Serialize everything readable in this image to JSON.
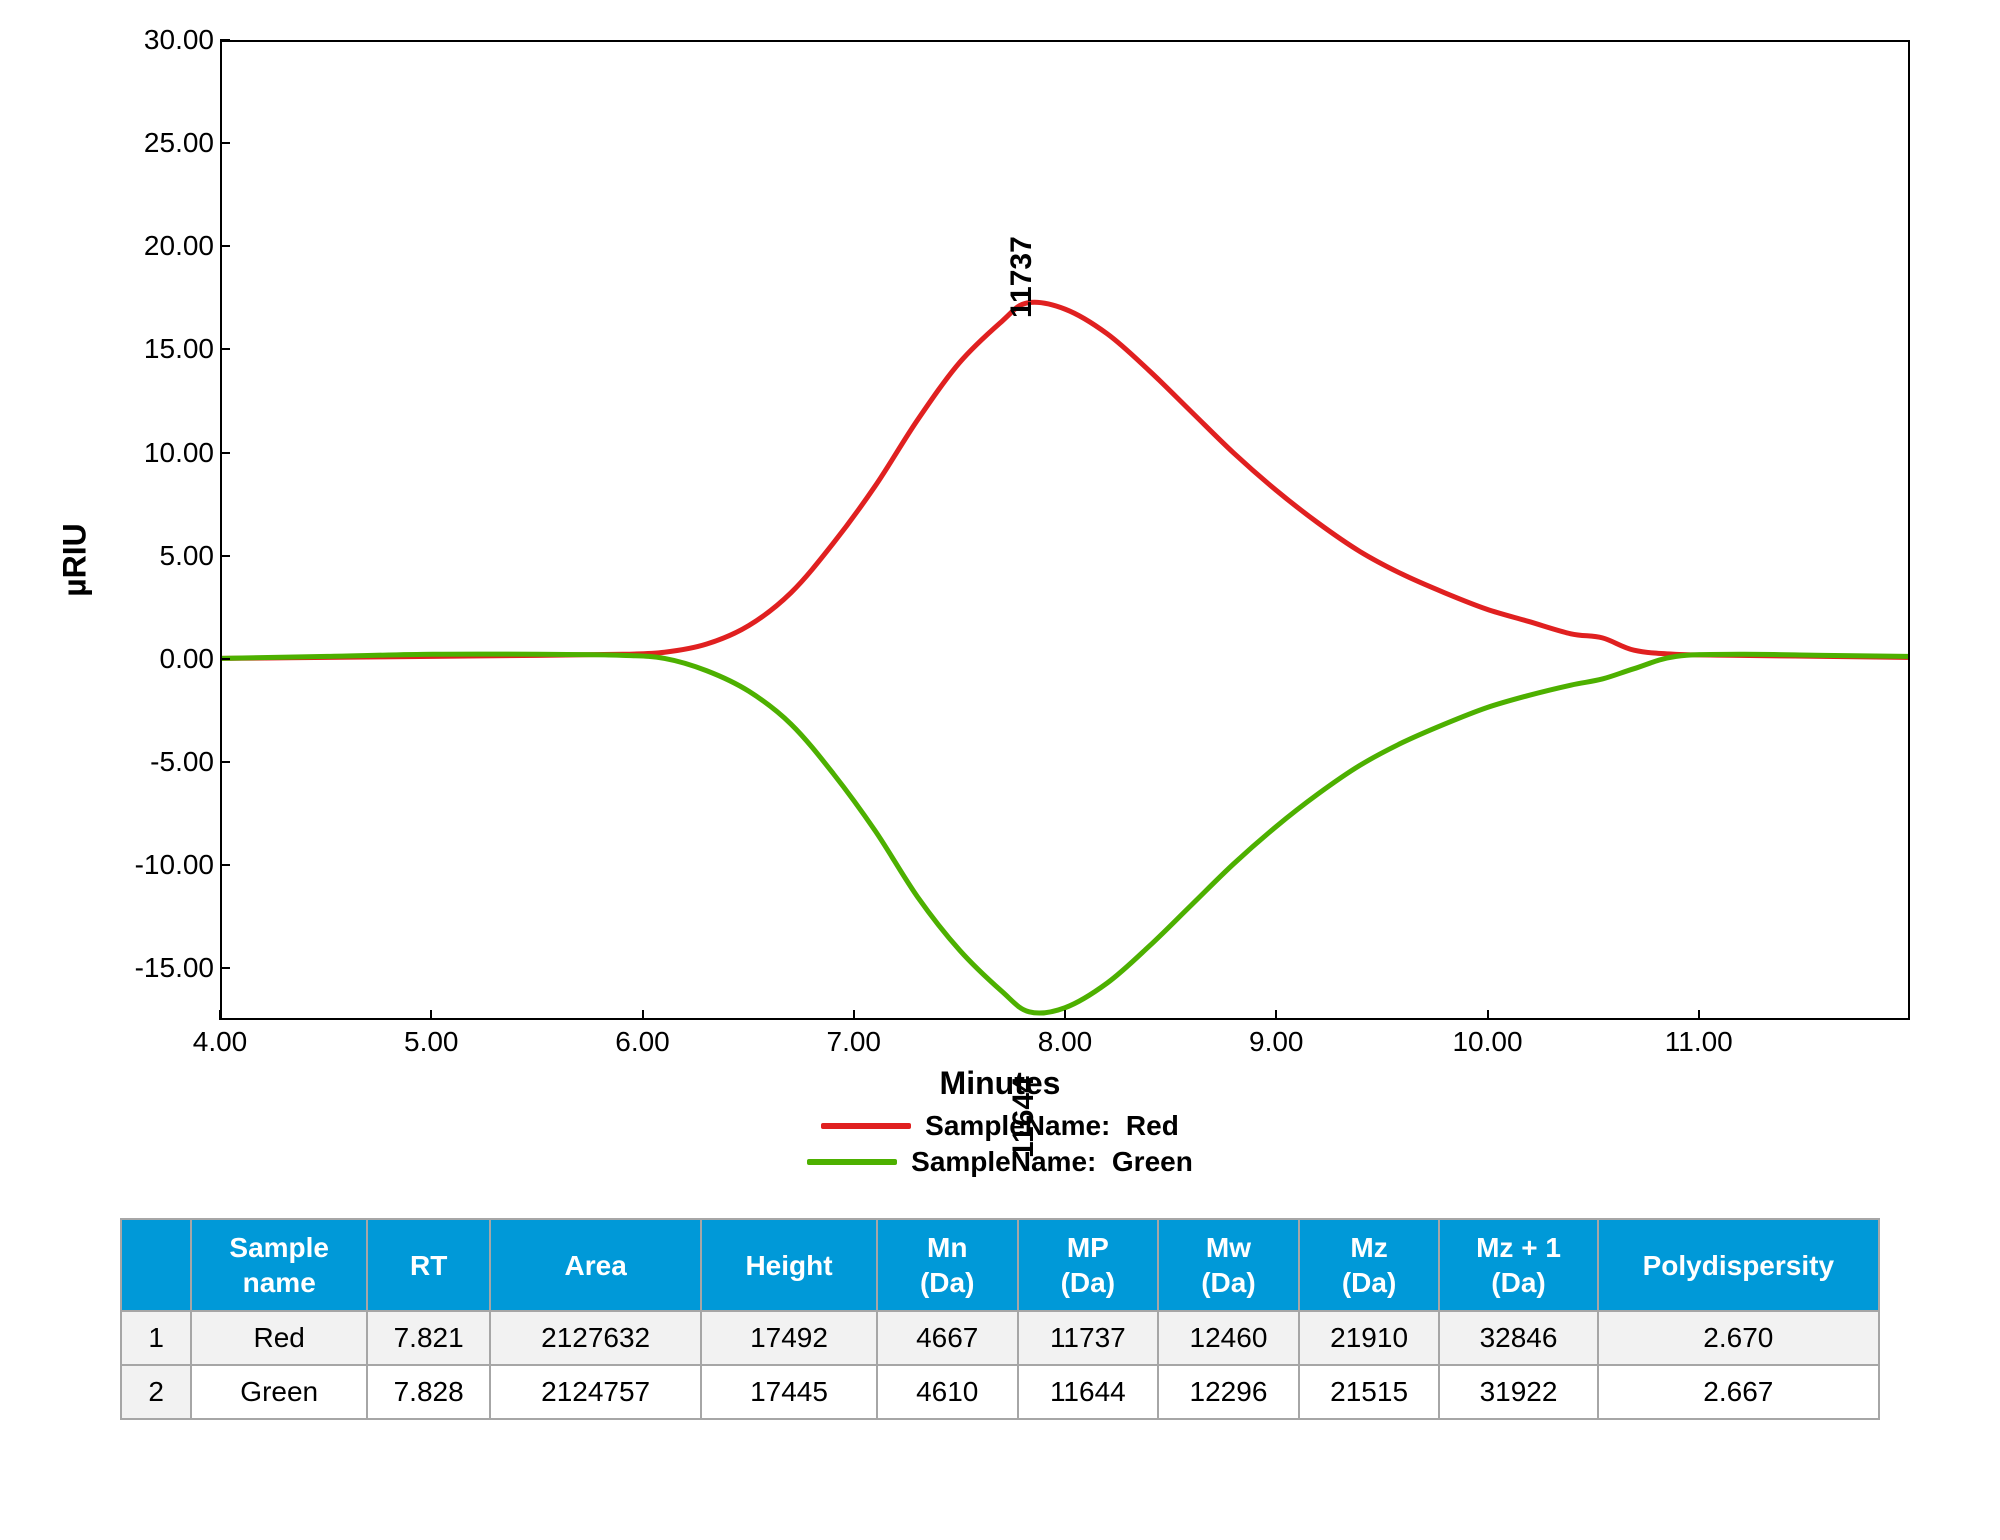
{
  "chart": {
    "type": "line",
    "ylabel": "µRIU",
    "xlabel": "Minutes",
    "xlim": [
      4.0,
      12.0
    ],
    "ylim": [
      -17.5,
      30.0
    ],
    "xtick_step": 1.0,
    "ytick_step": 5.0,
    "xtick_labels": [
      "4.00",
      "5.00",
      "6.00",
      "7.00",
      "8.00",
      "9.00",
      "10.00",
      "11.00"
    ],
    "ytick_labels": [
      "-15.00",
      "-10.00",
      "-5.00",
      "0.00",
      "5.00",
      "10.00",
      "15.00",
      "20.00",
      "25.00",
      "30.00"
    ],
    "ytick_values": [
      -15,
      -10,
      -5,
      0,
      5,
      10,
      15,
      20,
      25,
      30
    ],
    "xtick_values": [
      4,
      5,
      6,
      7,
      8,
      9,
      10,
      11
    ],
    "border_color": "#000000",
    "background_color": "#ffffff",
    "tick_fontsize": 28,
    "label_fontsize": 32,
    "line_width": 5,
    "series": [
      {
        "name": "Red",
        "color": "#e02020",
        "peak_label": "11737",
        "peak_x": 7.82,
        "points": [
          [
            4.0,
            0.0
          ],
          [
            4.5,
            0.05
          ],
          [
            5.0,
            0.1
          ],
          [
            5.5,
            0.15
          ],
          [
            5.9,
            0.2
          ],
          [
            6.1,
            0.3
          ],
          [
            6.3,
            0.7
          ],
          [
            6.5,
            1.6
          ],
          [
            6.7,
            3.2
          ],
          [
            6.9,
            5.6
          ],
          [
            7.1,
            8.4
          ],
          [
            7.3,
            11.6
          ],
          [
            7.5,
            14.4
          ],
          [
            7.7,
            16.4
          ],
          [
            7.82,
            17.3
          ],
          [
            8.0,
            17.0
          ],
          [
            8.2,
            15.8
          ],
          [
            8.4,
            14.0
          ],
          [
            8.6,
            12.0
          ],
          [
            8.8,
            10.0
          ],
          [
            9.0,
            8.2
          ],
          [
            9.2,
            6.6
          ],
          [
            9.4,
            5.2
          ],
          [
            9.6,
            4.1
          ],
          [
            9.8,
            3.2
          ],
          [
            10.0,
            2.4
          ],
          [
            10.2,
            1.8
          ],
          [
            10.4,
            1.2
          ],
          [
            10.55,
            1.0
          ],
          [
            10.7,
            0.4
          ],
          [
            10.9,
            0.2
          ],
          [
            11.2,
            0.15
          ],
          [
            11.6,
            0.1
          ],
          [
            12.0,
            0.05
          ]
        ]
      },
      {
        "name": "Green",
        "color": "#4db000",
        "peak_label": "11644",
        "peak_x": 7.83,
        "points": [
          [
            4.0,
            0.0
          ],
          [
            4.5,
            0.1
          ],
          [
            5.0,
            0.2
          ],
          [
            5.5,
            0.2
          ],
          [
            5.9,
            0.15
          ],
          [
            6.1,
            0.0
          ],
          [
            6.3,
            -0.6
          ],
          [
            6.5,
            -1.6
          ],
          [
            6.7,
            -3.2
          ],
          [
            6.9,
            -5.6
          ],
          [
            7.1,
            -8.4
          ],
          [
            7.3,
            -11.6
          ],
          [
            7.5,
            -14.2
          ],
          [
            7.7,
            -16.2
          ],
          [
            7.83,
            -17.2
          ],
          [
            8.0,
            -17.0
          ],
          [
            8.2,
            -15.8
          ],
          [
            8.4,
            -14.0
          ],
          [
            8.6,
            -12.0
          ],
          [
            8.8,
            -10.0
          ],
          [
            9.0,
            -8.2
          ],
          [
            9.2,
            -6.6
          ],
          [
            9.4,
            -5.2
          ],
          [
            9.6,
            -4.1
          ],
          [
            9.8,
            -3.2
          ],
          [
            10.0,
            -2.4
          ],
          [
            10.2,
            -1.8
          ],
          [
            10.4,
            -1.3
          ],
          [
            10.55,
            -1.0
          ],
          [
            10.7,
            -0.5
          ],
          [
            10.9,
            0.1
          ],
          [
            11.2,
            0.2
          ],
          [
            11.6,
            0.15
          ],
          [
            12.0,
            0.1
          ]
        ]
      }
    ],
    "legend": {
      "prefix": "SampleName:",
      "items": [
        {
          "color": "#e02020",
          "name": "Red"
        },
        {
          "color": "#4db000",
          "name": "Green"
        }
      ]
    }
  },
  "table": {
    "header_bg": "#0099d8",
    "header_fg": "#ffffff",
    "border_color": "#a6a6a6",
    "alt_row_bg": "#f2f2f2",
    "columns": [
      "",
      "Sample\nname",
      "RT",
      "Area",
      "Height",
      "Mn\n(Da)",
      "MP\n(Da)",
      "Mw\n(Da)",
      "Mz\n(Da)",
      "Mz + 1\n(Da)",
      "Polydispersity"
    ],
    "col_widths_pct": [
      4,
      10,
      7,
      12,
      10,
      8,
      8,
      8,
      8,
      9,
      16
    ],
    "rows": [
      [
        "1",
        "Red",
        "7.821",
        "2127632",
        "17492",
        "4667",
        "11737",
        "12460",
        "21910",
        "32846",
        "2.670"
      ],
      [
        "2",
        "Green",
        "7.828",
        "2124757",
        "17445",
        "4610",
        "11644",
        "12296",
        "21515",
        "31922",
        "2.667"
      ]
    ]
  }
}
